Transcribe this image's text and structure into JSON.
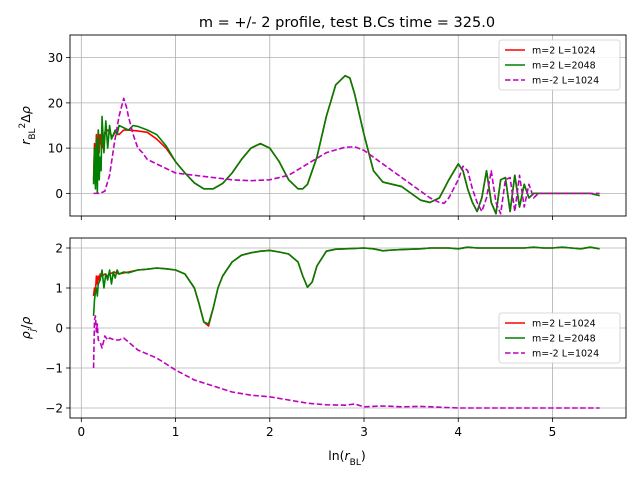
{
  "chart_data": {
    "type": "line",
    "title": "m = +/- 2 profile, test B.Cs time = 325.0",
    "xlabel": "ln(r_BL)",
    "xlim": [
      -0.12,
      5.78
    ],
    "xticks": [
      0,
      1,
      2,
      3,
      4,
      5
    ],
    "grid": true,
    "panels": [
      {
        "ylabel": "r_BL^2 Δρ",
        "ylim": [
          -5,
          35
        ],
        "yticks": [
          0,
          10,
          20,
          30
        ],
        "legend": "upper right",
        "series": [
          {
            "name": "m=2 L=1024",
            "color": "#ff0000",
            "style": "solid",
            "x": [
              0.13,
              0.14,
              0.15,
              0.16,
              0.17,
              0.18,
              0.19,
              0.2,
              0.22,
              0.25,
              0.28,
              0.3,
              0.33,
              0.36,
              0.4,
              0.45,
              0.5,
              0.6,
              0.7,
              0.8,
              0.9,
              1.0,
              1.1,
              1.2,
              1.3,
              1.4,
              1.5,
              1.6,
              1.7,
              1.8,
              1.9,
              2.0,
              2.1,
              2.2,
              2.3,
              2.35,
              2.4,
              2.5,
              2.6,
              2.7,
              2.8,
              2.85,
              2.9,
              3.0,
              3.1,
              3.2,
              3.3,
              3.4,
              3.5,
              3.6,
              3.7,
              3.8,
              3.85,
              3.9,
              4.0,
              4.05,
              4.1,
              4.15,
              4.2,
              4.25,
              4.3,
              4.35,
              4.4,
              4.45,
              4.5,
              4.55,
              4.6,
              4.65,
              4.7,
              4.75,
              4.8,
              4.85,
              4.9,
              4.95,
              5.0,
              5.05,
              5.1,
              5.2,
              5.3,
              5.4,
              5.5
            ],
            "y": [
              3,
              11,
              6,
              13,
              5,
              14,
              9,
              13,
              10,
              13.5,
              14,
              13.5,
              12.5,
              13.5,
              13,
              14,
              14,
              13.8,
              13.5,
              12,
              10,
              7,
              4.5,
              2.3,
              1,
              1,
              2.2,
              4.5,
              7.5,
              10,
              11,
              10,
              7,
              3,
              1,
              1,
              2,
              8,
              17,
              24,
              26,
              25.5,
              22,
              13,
              5,
              2.5,
              2,
              1.5,
              0,
              -1.5,
              -2,
              -1,
              1,
              3,
              6.5,
              5,
              1,
              -2,
              -4,
              -1,
              5,
              -2,
              -4.5,
              3,
              3.5,
              -4,
              4,
              -3,
              2,
              -1,
              0,
              0,
              0,
              0,
              0,
              0,
              0,
              0,
              0,
              0,
              -0.5
            ]
          },
          {
            "name": "m=2 L=2048",
            "color": "#008000",
            "style": "solid",
            "x": [
              0.13,
              0.14,
              0.15,
              0.16,
              0.17,
              0.18,
              0.19,
              0.2,
              0.21,
              0.22,
              0.24,
              0.26,
              0.28,
              0.3,
              0.32,
              0.34,
              0.36,
              0.38,
              0.4,
              0.45,
              0.5,
              0.55,
              0.6,
              0.7,
              0.8,
              0.9,
              1.0,
              1.1,
              1.2,
              1.3,
              1.4,
              1.5,
              1.6,
              1.7,
              1.8,
              1.9,
              2.0,
              2.1,
              2.2,
              2.3,
              2.35,
              2.4,
              2.5,
              2.6,
              2.7,
              2.8,
              2.85,
              2.9,
              3.0,
              3.1,
              3.2,
              3.3,
              3.4,
              3.5,
              3.6,
              3.7,
              3.8,
              3.85,
              3.9,
              4.0,
              4.05,
              4.1,
              4.15,
              4.2,
              4.25,
              4.3,
              4.35,
              4.4,
              4.45,
              4.5,
              4.55,
              4.6,
              4.65,
              4.7,
              4.75,
              4.8,
              4.85,
              4.9,
              4.95,
              5.0,
              5.05,
              5.1,
              5.2,
              5.3,
              5.4,
              5.5
            ],
            "y": [
              2,
              10,
              1,
              12,
              0,
              14,
              3,
              8,
              5,
              17,
              9,
              16,
              10,
              15,
              12,
              13,
              14,
              13,
              15,
              14.5,
              14,
              15,
              14.8,
              14,
              13,
              10.5,
              7,
              4.5,
              2.3,
              1,
              1,
              2.2,
              4.5,
              7.5,
              10,
              11,
              10,
              7,
              3,
              1,
              1,
              2,
              8,
              17,
              24,
              26,
              25.5,
              22,
              13,
              5,
              2.5,
              2,
              1.5,
              0,
              -1.5,
              -2,
              -1,
              1,
              3,
              6.5,
              5,
              1,
              -2,
              -4,
              -1,
              5,
              -2,
              -4.5,
              3,
              3.5,
              -4,
              4,
              -3,
              2,
              -1,
              0,
              0,
              0,
              0,
              0,
              0,
              0,
              0,
              0,
              0,
              -0.5
            ]
          },
          {
            "name": "m=-2 L=1024",
            "color": "#bf00bf",
            "style": "dashed",
            "x": [
              0.13,
              0.2,
              0.25,
              0.3,
              0.35,
              0.4,
              0.45,
              0.48,
              0.5,
              0.55,
              0.6,
              0.65,
              0.7,
              0.8,
              0.9,
              1.0,
              1.2,
              1.4,
              1.6,
              1.8,
              2.0,
              2.2,
              2.4,
              2.6,
              2.8,
              2.9,
              3.0,
              3.1,
              3.2,
              3.3,
              3.4,
              3.5,
              3.6,
              3.7,
              3.8,
              3.85,
              3.9,
              4.0,
              4.05,
              4.1,
              4.15,
              4.2,
              4.25,
              4.3,
              4.35,
              4.4,
              4.45,
              4.5,
              4.55,
              4.6,
              4.65,
              4.7,
              4.75,
              4.8,
              4.85,
              4.9,
              4.95,
              5.0,
              5.05,
              5.1,
              5.2,
              5.3,
              5.4,
              5.5
            ],
            "y": [
              0,
              0,
              0.5,
              4,
              11,
              17,
              21,
              19,
              17,
              13,
              10,
              9,
              7.5,
              6.5,
              5.5,
              4.5,
              4,
              3.5,
              3,
              2.8,
              3,
              4,
              6.5,
              9,
              10.2,
              10.3,
              9.5,
              8,
              6.5,
              5,
              3.5,
              2,
              0.5,
              -1,
              -2,
              -2.2,
              -1,
              3,
              6,
              5,
              1,
              -2,
              -4,
              -1,
              5,
              -2,
              -4.5,
              3,
              3.5,
              -4,
              4,
              -3,
              2,
              -1,
              0,
              0,
              0,
              0,
              0,
              0,
              0,
              0,
              0,
              0
            ]
          }
        ]
      },
      {
        "ylabel": "ρ_j / ρ",
        "ylim": [
          -2.25,
          2.25
        ],
        "yticks": [
          -2,
          -1,
          0,
          1,
          2
        ],
        "legend": "center right",
        "series": [
          {
            "name": "m=2 L=1024",
            "color": "#ff0000",
            "style": "solid",
            "x": [
              0.13,
              0.14,
              0.15,
              0.16,
              0.17,
              0.18,
              0.19,
              0.2,
              0.22,
              0.25,
              0.28,
              0.3,
              0.35,
              0.4,
              0.5,
              0.6,
              0.7,
              0.8,
              0.9,
              1.0,
              1.1,
              1.2,
              1.25,
              1.3,
              1.35,
              1.4,
              1.45,
              1.5,
              1.6,
              1.7,
              1.8,
              1.9,
              2.0,
              2.1,
              2.2,
              2.3,
              2.35,
              2.4,
              2.45,
              2.5,
              2.6,
              2.7,
              2.8,
              2.9,
              3.0,
              3.1,
              3.2,
              3.3,
              3.4,
              3.5,
              3.6,
              3.7,
              3.8,
              3.9,
              4.0,
              4.1,
              4.2,
              4.3,
              4.4,
              4.5,
              4.6,
              4.7,
              4.8,
              4.9,
              5.0,
              5.1,
              5.2,
              5.3,
              5.4,
              5.5
            ],
            "y": [
              0.8,
              1.0,
              0.9,
              1.3,
              1.1,
              1.3,
              1.2,
              1.35,
              1.3,
              1.35,
              1.3,
              1.35,
              1.4,
              1.35,
              1.4,
              1.45,
              1.47,
              1.5,
              1.48,
              1.45,
              1.35,
              1.0,
              0.6,
              0.15,
              0.05,
              0.5,
              1.0,
              1.3,
              1.65,
              1.82,
              1.88,
              1.92,
              1.94,
              1.9,
              1.85,
              1.65,
              1.3,
              1.02,
              1.15,
              1.55,
              1.92,
              1.97,
              1.98,
              1.99,
              2.0,
              1.98,
              1.93,
              1.95,
              1.96,
              1.97,
              1.98,
              2.0,
              2.0,
              2.0,
              1.98,
              2.02,
              2.0,
              2.0,
              2.0,
              2.0,
              2.0,
              2.0,
              2.02,
              2.0,
              2.0,
              2.02,
              2.0,
              1.98,
              2.02,
              1.98
            ]
          },
          {
            "name": "m=2 L=2048",
            "color": "#008000",
            "style": "solid",
            "x": [
              0.13,
              0.14,
              0.15,
              0.16,
              0.17,
              0.18,
              0.2,
              0.22,
              0.24,
              0.26,
              0.28,
              0.3,
              0.32,
              0.34,
              0.36,
              0.38,
              0.4,
              0.45,
              0.5,
              0.6,
              0.7,
              0.8,
              0.9,
              1.0,
              1.1,
              1.2,
              1.25,
              1.3,
              1.35,
              1.4,
              1.45,
              1.5,
              1.6,
              1.7,
              1.8,
              1.9,
              2.0,
              2.1,
              2.2,
              2.3,
              2.35,
              2.4,
              2.45,
              2.5,
              2.6,
              2.7,
              2.8,
              2.9,
              3.0,
              3.1,
              3.2,
              3.3,
              3.4,
              3.5,
              3.6,
              3.7,
              3.8,
              3.9,
              4.0,
              4.1,
              4.2,
              4.3,
              4.4,
              4.5,
              4.6,
              4.7,
              4.8,
              4.9,
              5.0,
              5.1,
              5.2,
              5.3,
              5.4,
              5.5
            ],
            "y": [
              0.3,
              0.7,
              0.9,
              1.0,
              0.8,
              1.1,
              1.2,
              1.45,
              1.0,
              1.35,
              1.2,
              1.45,
              1.1,
              1.4,
              1.25,
              1.45,
              1.35,
              1.4,
              1.38,
              1.45,
              1.47,
              1.5,
              1.48,
              1.45,
              1.35,
              1.0,
              0.6,
              0.15,
              0.1,
              0.5,
              1.0,
              1.3,
              1.65,
              1.82,
              1.88,
              1.92,
              1.94,
              1.9,
              1.85,
              1.65,
              1.3,
              1.02,
              1.15,
              1.55,
              1.92,
              1.97,
              1.98,
              1.99,
              2.0,
              1.98,
              1.93,
              1.95,
              1.96,
              1.97,
              1.98,
              2.0,
              2.0,
              2.0,
              1.98,
              2.02,
              2.0,
              2.0,
              2.0,
              2.0,
              2.0,
              2.0,
              2.02,
              2.0,
              2.0,
              2.02,
              2.0,
              1.98,
              2.02,
              1.98
            ]
          },
          {
            "name": "m=-2 L=1024",
            "color": "#bf00bf",
            "style": "dashed",
            "x": [
              0.13,
              0.14,
              0.15,
              0.16,
              0.17,
              0.18,
              0.2,
              0.22,
              0.25,
              0.28,
              0.3,
              0.35,
              0.4,
              0.45,
              0.5,
              0.55,
              0.6,
              0.7,
              0.8,
              0.9,
              1.0,
              1.2,
              1.4,
              1.6,
              1.8,
              2.0,
              2.2,
              2.4,
              2.6,
              2.8,
              2.9,
              3.0,
              3.2,
              3.4,
              3.6,
              3.8,
              4.0,
              4.2,
              4.4,
              4.6,
              4.8,
              5.0,
              5.2,
              5.4,
              5.5
            ],
            "y": [
              -1.0,
              0.2,
              0.3,
              -0.1,
              0.1,
              -0.3,
              -0.35,
              -0.5,
              -0.2,
              -0.3,
              -0.25,
              -0.3,
              -0.3,
              -0.25,
              -0.35,
              -0.45,
              -0.55,
              -0.65,
              -0.75,
              -0.9,
              -1.05,
              -1.3,
              -1.45,
              -1.6,
              -1.68,
              -1.72,
              -1.8,
              -1.88,
              -1.92,
              -1.93,
              -1.9,
              -1.97,
              -1.95,
              -1.97,
              -1.96,
              -1.98,
              -2.0,
              -2.0,
              -2.0,
              -2.0,
              -2.0,
              -2.0,
              -2.0,
              -2.0,
              -2.0
            ]
          }
        ]
      }
    ]
  }
}
